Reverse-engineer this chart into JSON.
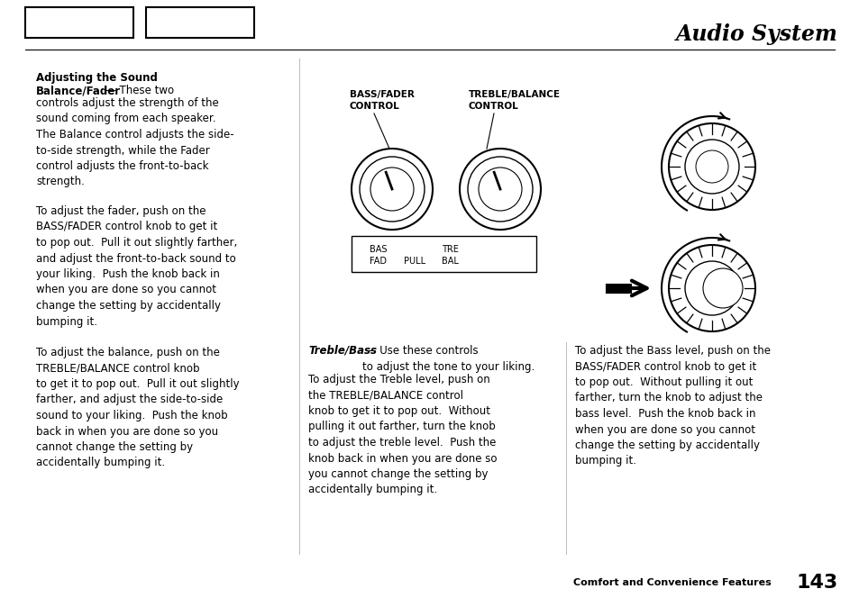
{
  "title": "Audio System",
  "page_footer": "Comfort and Convenience Features",
  "page_number": "143",
  "bg_color": "#ffffff",
  "text_color": "#000000",
  "col1_heading1": "Adjusting the Sound",
  "col1_heading2_bold": "Balance/Fader",
  "col1_heading2_rest": "— These two",
  "col1_intro": "controls adjust the strength of the\nsound coming from each speaker.\nThe Balance control adjusts the side-\nto-side strength, while the Fader\ncontrol adjusts the front-to-back\nstrength.",
  "col1_para2": "To adjust the fader, push on the\nBASS/FADER control knob to get it\nto pop out.  Pull it out slightly farther,\nand adjust the front-to-back sound to\nyour liking.  Push the knob back in\nwhen you are done so you cannot\nchange the setting by accidentally\nbumping it.",
  "col1_para3": "To adjust the balance, push on the\nTREBLE/BALANCE control knob\nto get it to pop out.  Pull it out slightly\nfarther, and adjust the side-to-side\nsound to your liking.  Push the knob\nback in when you are done so you\ncannot change the setting by\naccidentally bumping it.",
  "col2_heading_bold": "Treble/Bass",
  "col2_heading_rest": " — Use these controls\nto adjust the tone to your liking.",
  "col2_para1": "To adjust the Treble level, push on\nthe TREBLE/BALANCE control\nknob to get it to pop out.  Without\npulling it out farther, turn the knob\nto adjust the treble level.  Push the\nknob back in when you are done so\nyou cannot change the setting by\naccidentally bumping it.",
  "col3_para1": "To adjust the Bass level, push on the\nBASS/FADER control knob to get it\nto pop out.  Without pulling it out\nfarther, turn the knob to adjust the\nbass level.  Push the knob back in\nwhen you are done so you cannot\nchange the setting by accidentally\nbumping it.",
  "bass_fader_label1": "BASS/FADER",
  "bass_fader_label2": "CONTROL",
  "treble_balance_label1": "TREBLE/BALANCE",
  "treble_balance_label2": "CONTROL"
}
